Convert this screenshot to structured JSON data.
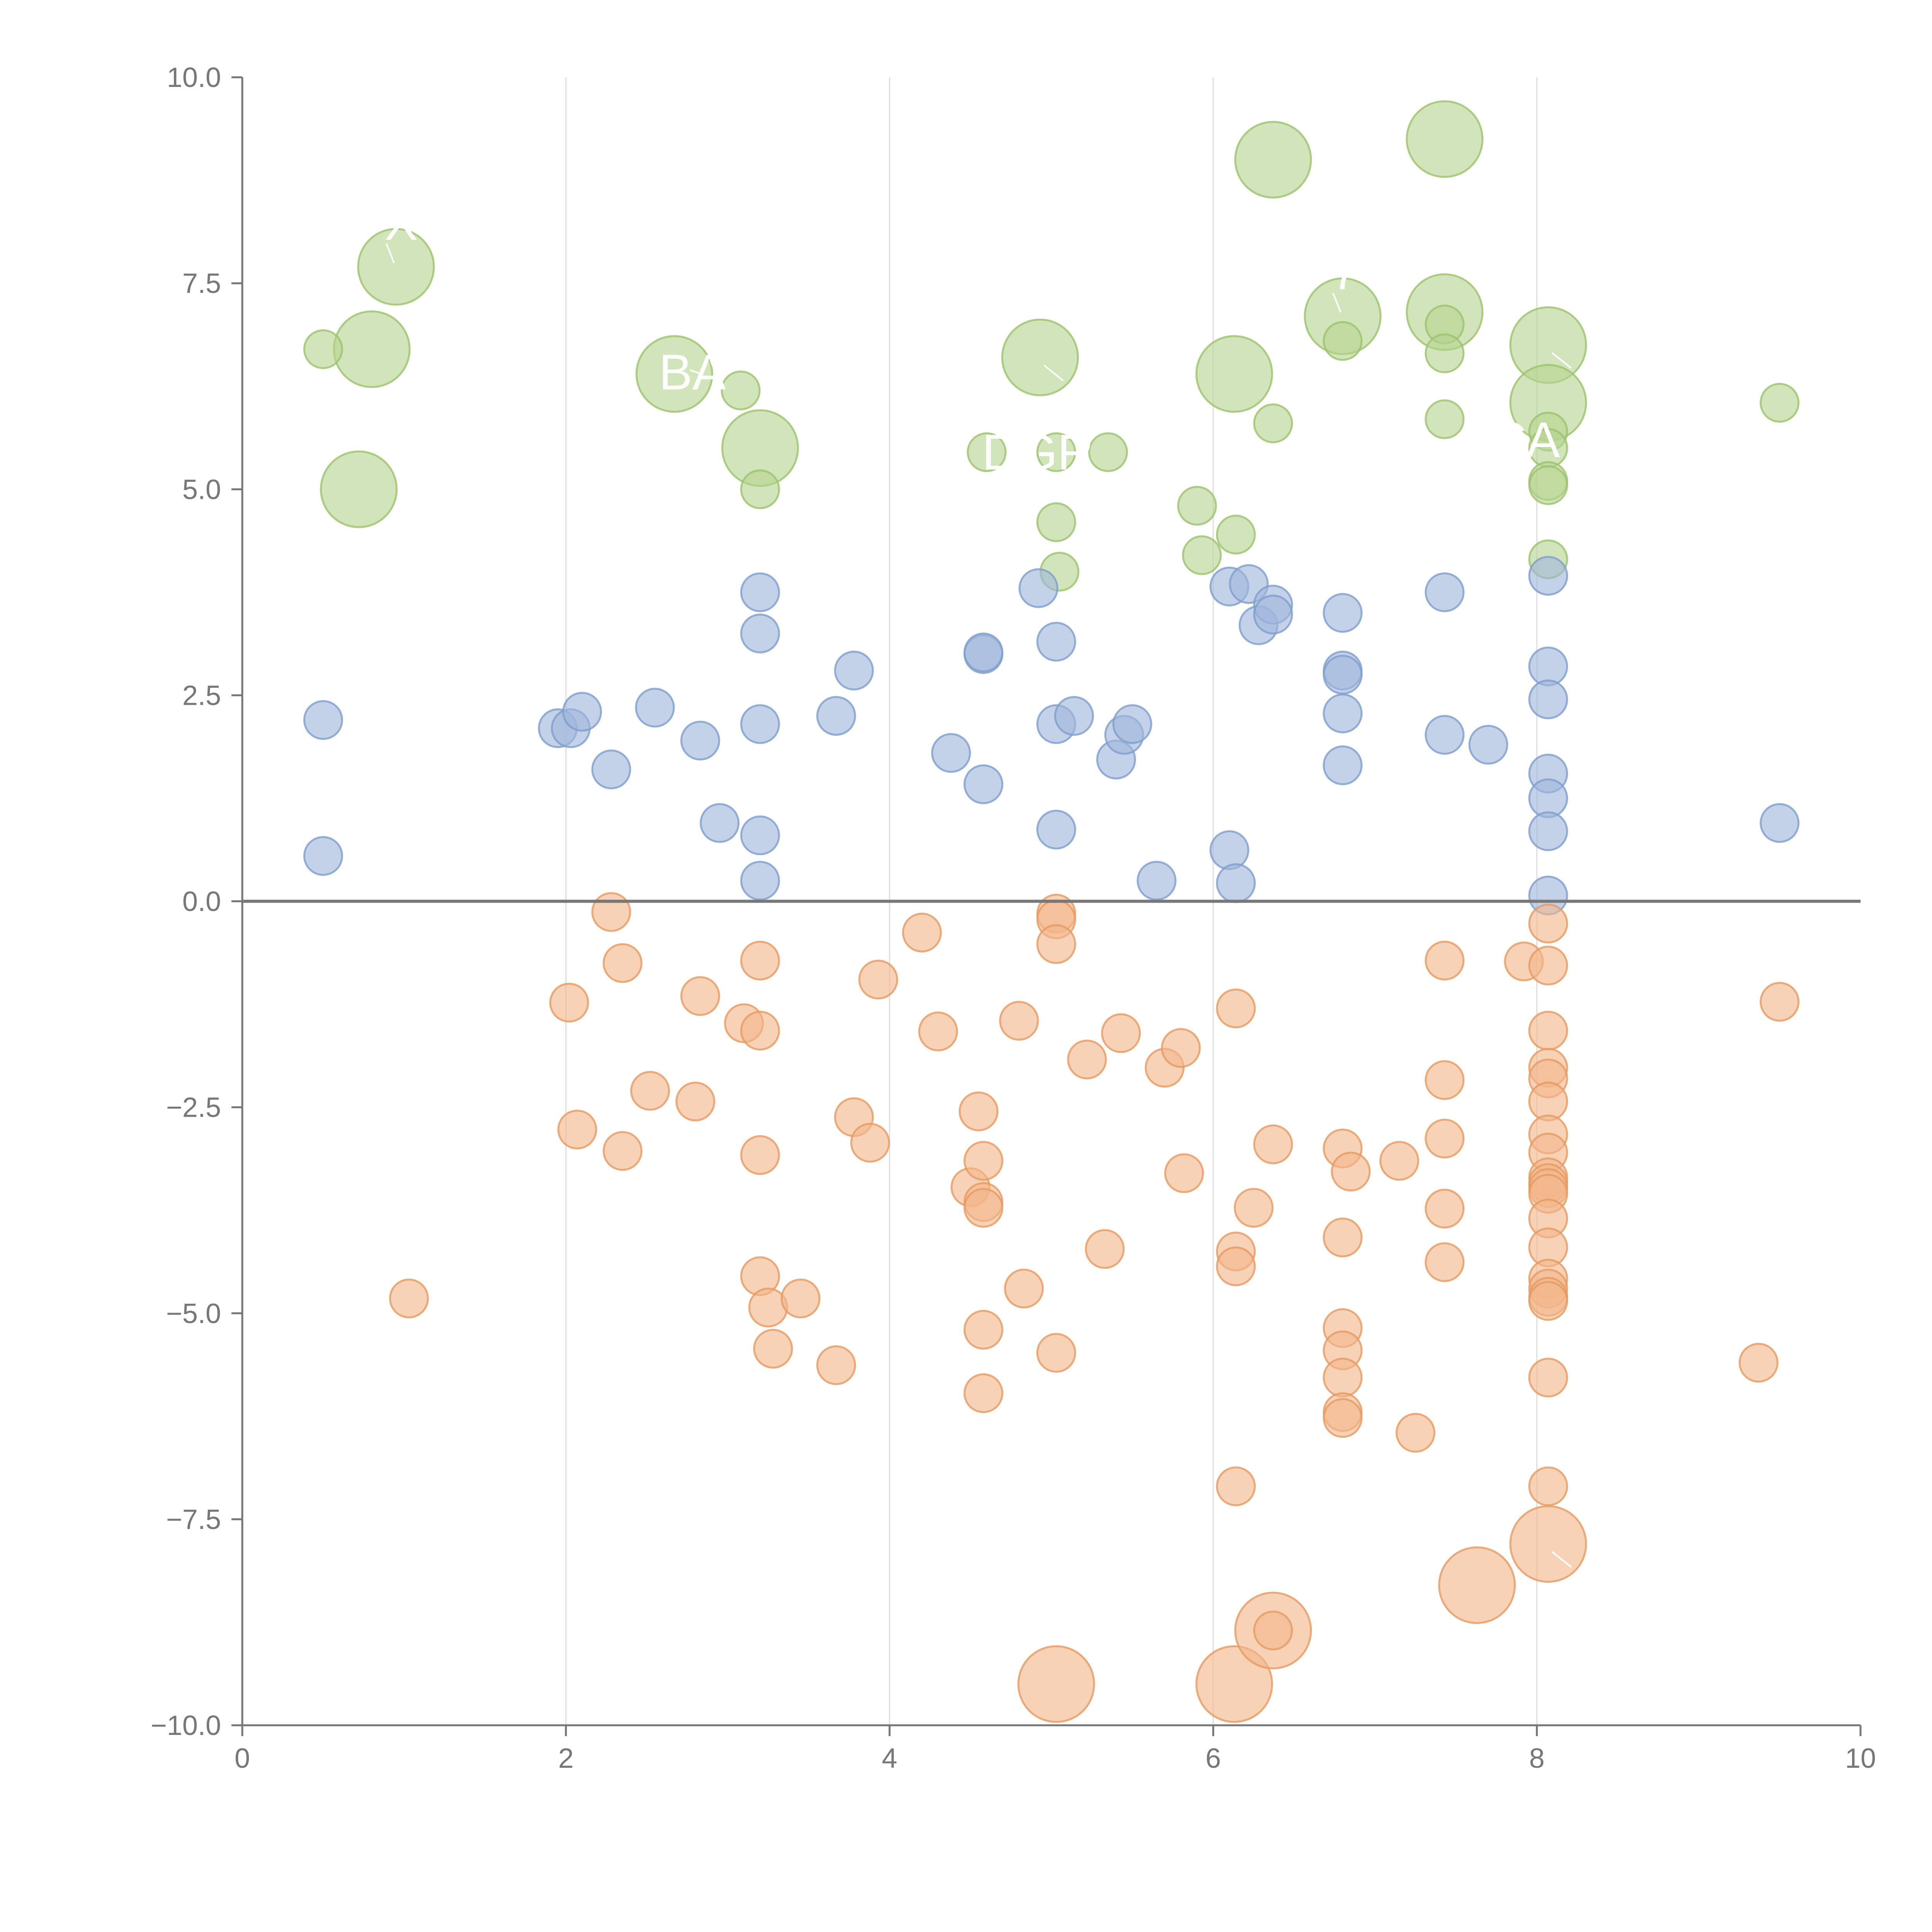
{
  "chart_data": {
    "type": "scatter",
    "title": "",
    "xlabel": "",
    "ylabel": "",
    "xlim": [
      0,
      10
    ],
    "ylim": [
      -10,
      10
    ],
    "x_ticks": [
      0,
      2,
      4,
      6,
      8,
      10
    ],
    "x_tick_labels": [
      "0",
      "2",
      "4",
      "6",
      "8",
      "10"
    ],
    "y_ticks": [
      10,
      7.5,
      5,
      2.5,
      0,
      -2.5,
      -5,
      -7.5,
      -10
    ],
    "y_tick_labels": [
      "10.0",
      "7.5",
      "5.0",
      "2.5",
      "0.0",
      "−2.5",
      "−5.0",
      "−7.5",
      "−10.0"
    ],
    "vertical_grid": true,
    "horizontal_grid": false,
    "reference_line_y": 0,
    "series": [
      {
        "name": "green",
        "color": "#b5d48f",
        "stroke": "#9cc26d",
        "points": [
          [
            0.72,
            5.0,
            1.4
          ],
          [
            0.8,
            6.7,
            1.4
          ],
          [
            0.95,
            7.7,
            1.4
          ],
          [
            0.5,
            6.7,
            0.7
          ],
          [
            2.67,
            6.4,
            1.4
          ],
          [
            3.2,
            5.5,
            1.4
          ],
          [
            3.08,
            6.2,
            0.7
          ],
          [
            3.2,
            5.0,
            0.7
          ],
          [
            4.93,
            6.6,
            1.4
          ],
          [
            4.6,
            5.45,
            0.7
          ],
          [
            5.03,
            5.45,
            0.7
          ],
          [
            5.35,
            5.45,
            0.7
          ],
          [
            5.03,
            4.6,
            0.7
          ],
          [
            5.05,
            4.0,
            0.7
          ],
          [
            6.37,
            9.0,
            1.4
          ],
          [
            6.13,
            6.4,
            1.4
          ],
          [
            6.37,
            5.8,
            0.7
          ],
          [
            5.9,
            4.8,
            0.7
          ],
          [
            5.93,
            4.2,
            0.7
          ],
          [
            6.14,
            4.45,
            0.7
          ],
          [
            6.8,
            7.1,
            1.4
          ],
          [
            6.8,
            6.8,
            0.7
          ],
          [
            7.43,
            9.25,
            1.4
          ],
          [
            7.43,
            7.15,
            1.4
          ],
          [
            7.43,
            7.0,
            0.7
          ],
          [
            7.43,
            6.65,
            0.7
          ],
          [
            7.43,
            5.85,
            0.7
          ],
          [
            8.07,
            6.75,
            1.4
          ],
          [
            8.07,
            6.05,
            1.4
          ],
          [
            8.07,
            5.7,
            0.7
          ],
          [
            8.07,
            5.5,
            0.7
          ],
          [
            8.07,
            5.1,
            0.7
          ],
          [
            8.07,
            5.05,
            0.7
          ],
          [
            8.07,
            4.15,
            0.7
          ],
          [
            9.5,
            6.05,
            0.7
          ]
        ]
      },
      {
        "name": "blue",
        "color": "#9fb7dc",
        "stroke": "#7e9dcc",
        "points": [
          [
            0.5,
            2.2,
            0.7
          ],
          [
            0.5,
            0.55,
            0.7
          ],
          [
            1.95,
            2.1,
            0.7
          ],
          [
            2.03,
            2.1,
            0.7
          ],
          [
            2.1,
            2.3,
            0.7
          ],
          [
            2.28,
            1.6,
            0.7
          ],
          [
            2.55,
            2.35,
            0.7
          ],
          [
            2.83,
            1.95,
            0.7
          ],
          [
            2.95,
            0.95,
            0.7
          ],
          [
            3.2,
            3.75,
            0.7
          ],
          [
            3.2,
            3.25,
            0.7
          ],
          [
            3.2,
            2.15,
            0.7
          ],
          [
            3.2,
            0.8,
            0.7
          ],
          [
            3.2,
            0.25,
            0.7
          ],
          [
            3.67,
            2.25,
            0.7
          ],
          [
            3.78,
            2.8,
            0.7
          ],
          [
            4.38,
            1.8,
            0.7
          ],
          [
            4.58,
            3.0,
            0.7
          ],
          [
            4.58,
            3.02,
            0.7
          ],
          [
            4.58,
            1.42,
            0.7
          ],
          [
            4.92,
            3.8,
            0.7
          ],
          [
            5.03,
            3.15,
            0.7
          ],
          [
            5.03,
            2.15,
            0.7
          ],
          [
            5.14,
            2.25,
            0.7
          ],
          [
            5.03,
            0.87,
            0.7
          ],
          [
            5.4,
            1.72,
            0.7
          ],
          [
            5.45,
            2.02,
            0.7
          ],
          [
            5.5,
            2.15,
            0.7
          ],
          [
            5.65,
            0.25,
            0.7
          ],
          [
            6.1,
            3.82,
            0.7
          ],
          [
            6.22,
            3.85,
            0.7
          ],
          [
            6.28,
            3.35,
            0.7
          ],
          [
            6.37,
            3.6,
            0.7
          ],
          [
            6.37,
            3.48,
            0.7
          ],
          [
            6.1,
            0.62,
            0.7
          ],
          [
            6.14,
            0.22,
            0.7
          ],
          [
            6.8,
            3.5,
            0.7
          ],
          [
            6.8,
            2.8,
            0.7
          ],
          [
            6.8,
            2.75,
            0.7
          ],
          [
            6.8,
            2.28,
            0.7
          ],
          [
            6.8,
            1.65,
            0.7
          ],
          [
            7.43,
            3.75,
            0.7
          ],
          [
            7.43,
            2.02,
            0.7
          ],
          [
            7.7,
            1.9,
            0.7
          ],
          [
            8.07,
            3.95,
            0.7
          ],
          [
            8.07,
            2.85,
            0.7
          ],
          [
            8.07,
            2.45,
            0.7
          ],
          [
            8.07,
            1.55,
            0.7
          ],
          [
            8.07,
            1.25,
            0.7
          ],
          [
            8.07,
            0.85,
            0.7
          ],
          [
            8.07,
            0.07,
            0.7
          ],
          [
            9.5,
            0.95,
            0.7
          ]
        ]
      },
      {
        "name": "orange",
        "color": "#f2b68b",
        "stroke": "#e59a60",
        "points": [
          [
            1.03,
            -4.82,
            0.7
          ],
          [
            2.02,
            -1.23,
            0.7
          ],
          [
            2.07,
            -2.77,
            0.7
          ],
          [
            2.28,
            -0.13,
            0.7
          ],
          [
            2.35,
            -0.75,
            0.7
          ],
          [
            2.35,
            -3.03,
            0.7
          ],
          [
            2.52,
            -2.3,
            0.7
          ],
          [
            2.8,
            -2.43,
            0.7
          ],
          [
            2.83,
            -1.15,
            0.7
          ],
          [
            3.1,
            -1.48,
            0.7
          ],
          [
            3.2,
            -0.72,
            0.7
          ],
          [
            3.2,
            -1.57,
            0.7
          ],
          [
            3.2,
            -3.08,
            0.7
          ],
          [
            3.2,
            -4.55,
            0.7
          ],
          [
            3.25,
            -4.93,
            0.7
          ],
          [
            3.28,
            -5.43,
            0.7
          ],
          [
            3.45,
            -4.82,
            0.7
          ],
          [
            3.67,
            -5.63,
            0.7
          ],
          [
            3.78,
            -2.62,
            0.7
          ],
          [
            3.88,
            -2.93,
            0.7
          ],
          [
            3.93,
            -0.95,
            0.7
          ],
          [
            4.2,
            -0.38,
            0.7
          ],
          [
            4.3,
            -1.58,
            0.7
          ],
          [
            4.5,
            -3.47,
            0.7
          ],
          [
            4.55,
            -2.55,
            0.7
          ],
          [
            4.58,
            -3.15,
            0.7
          ],
          [
            4.58,
            -3.65,
            0.7
          ],
          [
            4.58,
            -3.72,
            0.7
          ],
          [
            4.58,
            -5.2,
            0.7
          ],
          [
            4.58,
            -5.97,
            0.7
          ],
          [
            4.8,
            -1.45,
            0.7
          ],
          [
            4.83,
            -4.7,
            0.7
          ],
          [
            5.03,
            -0.15,
            0.7
          ],
          [
            5.03,
            -0.22,
            0.7
          ],
          [
            5.03,
            -0.52,
            0.7
          ],
          [
            5.03,
            -5.48,
            0.7
          ],
          [
            5.03,
            -9.5,
            1.4
          ],
          [
            5.22,
            -1.92,
            0.7
          ],
          [
            5.33,
            -4.22,
            0.7
          ],
          [
            5.43,
            -1.6,
            0.7
          ],
          [
            5.7,
            -2.02,
            0.7
          ],
          [
            5.8,
            -1.78,
            0.7
          ],
          [
            5.82,
            -3.3,
            0.7
          ],
          [
            6.13,
            -9.5,
            1.4
          ],
          [
            6.14,
            -1.3,
            0.7
          ],
          [
            6.14,
            -4.25,
            0.7
          ],
          [
            6.14,
            -4.43,
            0.7
          ],
          [
            6.14,
            -7.1,
            0.7
          ],
          [
            6.25,
            -3.72,
            0.7
          ],
          [
            6.37,
            -2.95,
            0.7
          ],
          [
            6.37,
            -8.85,
            1.4
          ],
          [
            6.37,
            -8.85,
            0.7
          ],
          [
            6.8,
            -3.0,
            0.7
          ],
          [
            6.8,
            -4.08,
            0.7
          ],
          [
            6.8,
            -5.18,
            0.7
          ],
          [
            6.8,
            -5.45,
            0.7
          ],
          [
            6.8,
            -5.78,
            0.7
          ],
          [
            6.8,
            -6.2,
            0.7
          ],
          [
            6.8,
            -6.27,
            0.7
          ],
          [
            6.85,
            -3.28,
            0.7
          ],
          [
            7.15,
            -3.15,
            0.7
          ],
          [
            7.25,
            -6.45,
            0.7
          ],
          [
            7.43,
            -0.72,
            0.7
          ],
          [
            7.43,
            -2.17,
            0.7
          ],
          [
            7.43,
            -2.88,
            0.7
          ],
          [
            7.43,
            -3.73,
            0.7
          ],
          [
            7.43,
            -4.38,
            0.7
          ],
          [
            7.63,
            -8.3,
            1.4
          ],
          [
            7.92,
            -0.73,
            0.7
          ],
          [
            8.07,
            -0.27,
            0.7
          ],
          [
            8.07,
            -0.78,
            0.7
          ],
          [
            8.07,
            -1.57,
            0.7
          ],
          [
            8.07,
            -2.02,
            0.7
          ],
          [
            8.07,
            -2.15,
            0.7
          ],
          [
            8.07,
            -2.43,
            0.7
          ],
          [
            8.07,
            -2.83,
            0.7
          ],
          [
            8.07,
            -3.05,
            0.7
          ],
          [
            8.07,
            -3.35,
            0.7
          ],
          [
            8.07,
            -3.42,
            0.7
          ],
          [
            8.07,
            -3.48,
            0.7
          ],
          [
            8.07,
            -3.55,
            0.7
          ],
          [
            8.07,
            -3.85,
            0.7
          ],
          [
            8.07,
            -4.2,
            0.7
          ],
          [
            8.07,
            -4.58,
            0.7
          ],
          [
            8.07,
            -4.7,
            0.7
          ],
          [
            8.07,
            -4.8,
            0.7
          ],
          [
            8.07,
            -4.85,
            0.7
          ],
          [
            8.07,
            -5.78,
            0.7
          ],
          [
            8.07,
            -7.1,
            0.7
          ],
          [
            8.07,
            -7.8,
            1.4
          ],
          [
            9.37,
            -5.6,
            0.7
          ],
          [
            9.5,
            -1.22,
            0.7
          ]
        ]
      }
    ],
    "callouts": [
      {
        "text": "X",
        "x": 0.95,
        "y": 7.7,
        "anchor": "top"
      },
      {
        "text": "BA",
        "x": 2.67,
        "y": 6.4,
        "anchor": "left"
      },
      {
        "text": "DGR",
        "x": 4.93,
        "y": 6.6,
        "anchor": "below"
      },
      {
        "text": "CA",
        "x": 8.07,
        "y": 6.75,
        "anchor": "below"
      },
      {
        "text": "7",
        "x": 6.8,
        "y": 7.1,
        "anchor": "top"
      },
      {
        "text": "C",
        "x": 8.07,
        "y": -7.8,
        "anchor": "below"
      }
    ]
  }
}
